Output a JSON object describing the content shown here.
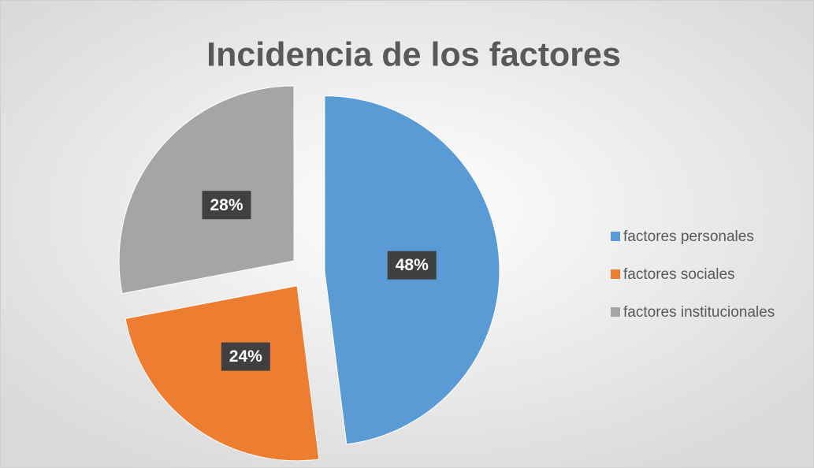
{
  "chart_data": {
    "type": "pie",
    "title": "Incidencia de los factores",
    "categories": [
      "factores personales",
      "factores sociales",
      "factores institucionales"
    ],
    "values": [
      48,
      24,
      28
    ],
    "value_labels": [
      "48%",
      "24%",
      "28%"
    ],
    "colors": [
      "#5b9bd5",
      "#ed7d31",
      "#a5a5a5"
    ],
    "legend": "right"
  }
}
